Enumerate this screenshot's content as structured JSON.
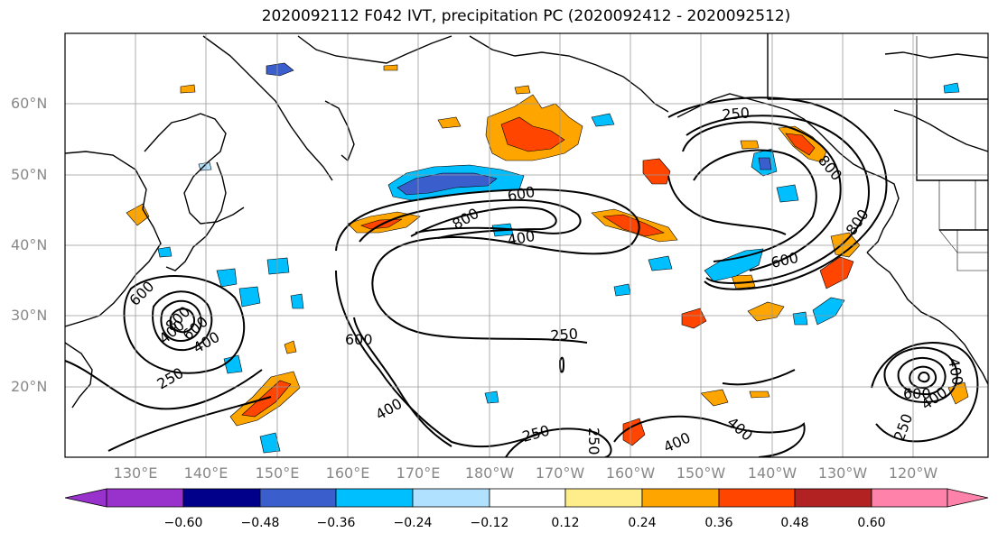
{
  "title": "2020092112 F042 IVT, precipitation PC (2020092412 - 2020092512)",
  "lat_labels": [
    "60°N",
    "50°N",
    "40°N",
    "30°N",
    "20°N"
  ],
  "lon_labels": [
    "130°E",
    "140°E",
    "150°E",
    "160°E",
    "170°E",
    "180°W",
    "170°W",
    "160°W",
    "150°W",
    "140°W",
    "130°W",
    "120°W"
  ],
  "contour_labels": [
    "250",
    "600",
    "800",
    "400",
    "600",
    "250",
    "600",
    "400",
    "800",
    "400",
    "800",
    "600",
    "250",
    "400",
    "250",
    "250",
    "400",
    "400",
    "400",
    "800",
    "600",
    "400",
    "600",
    "250"
  ],
  "colorbar": {
    "ticks": [
      "−0.60",
      "−0.48",
      "−0.36",
      "−0.24",
      "−0.12",
      "0.12",
      "0.24",
      "0.36",
      "0.48",
      "0.60"
    ],
    "colors": [
      "#9932CC",
      "#00008B",
      "#3A5FCD",
      "#00BFFF",
      "#B0E2FF",
      "#FFFFFF",
      "#FFEC8B",
      "#FFA500",
      "#FF4500",
      "#B22222",
      "#FF82AB"
    ]
  }
}
